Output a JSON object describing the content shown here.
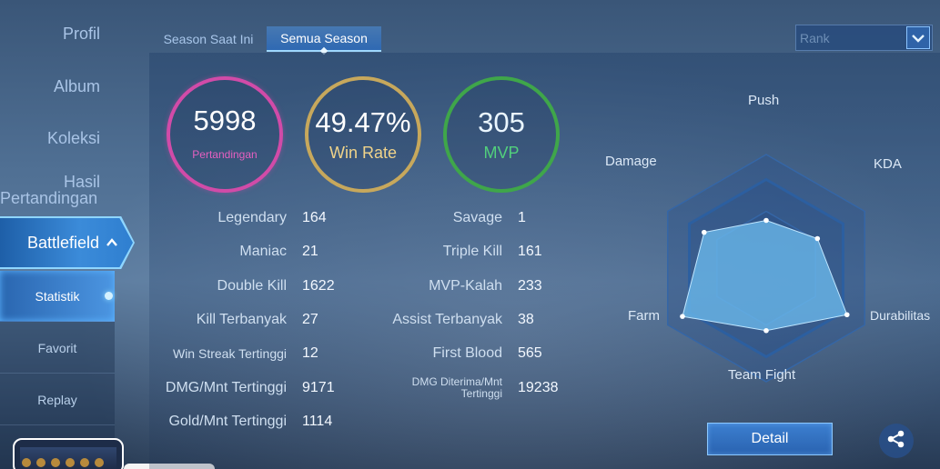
{
  "sidebar": {
    "items": [
      {
        "label": "Profil"
      },
      {
        "label": "Album"
      },
      {
        "label": "Koleksi"
      },
      {
        "label": "Hasil"
      },
      {
        "label": "Pertandingan"
      },
      {
        "label": "Battlefield"
      }
    ],
    "sub_items": [
      {
        "label": "Statistik"
      },
      {
        "label": "Favorit"
      },
      {
        "label": "Replay"
      }
    ]
  },
  "tabs": [
    {
      "label": "Season Saat Ini"
    },
    {
      "label": "Semua Season"
    }
  ],
  "rank_select": {
    "value": "Rank"
  },
  "summary": {
    "matches": {
      "value": "5998",
      "label": "Pertandingan"
    },
    "win_rate": {
      "value": "49.47%",
      "label": "Win Rate"
    },
    "mvp": {
      "value": "305",
      "label": "MVP"
    }
  },
  "stats_left": [
    {
      "label": "Legendary",
      "value": "164"
    },
    {
      "label": "Maniac",
      "value": "21"
    },
    {
      "label": "Double Kill",
      "value": "1622"
    },
    {
      "label": "Kill Terbanyak",
      "value": "27"
    },
    {
      "label": "Win Streak Tertinggi",
      "value": "12"
    },
    {
      "label": "DMG/Mnt Tertinggi",
      "value": "9171"
    },
    {
      "label": "Gold/Mnt Tertinggi",
      "value": "1114"
    }
  ],
  "stats_right": [
    {
      "label": "Savage",
      "value": "1"
    },
    {
      "label": "Triple Kill",
      "value": "161"
    },
    {
      "label": "MVP-Kalah",
      "value": "233"
    },
    {
      "label": "Assist Terbanyak",
      "value": "38"
    },
    {
      "label": "First Blood",
      "value": "565"
    },
    {
      "label": "DMG Diterima/Mnt",
      "label2": "Tertinggi",
      "value": "19238"
    }
  ],
  "radar": {
    "axes": [
      "Push",
      "KDA",
      "Durabilitas",
      "Team Fight",
      "Farm",
      "Damage"
    ],
    "values": [
      0.42,
      0.52,
      0.82,
      0.55,
      0.85,
      0.63
    ]
  },
  "buttons": {
    "detail": "Detail"
  },
  "colors": {
    "accent": "#3b8bd9",
    "matches": "#d14ba8",
    "win_rate": "#c7a85c",
    "mvp": "#3fa64a"
  },
  "icons": {
    "share": "share-icon",
    "dropdown": "chevron-down-icon",
    "expand": "chevron-up-icon"
  }
}
